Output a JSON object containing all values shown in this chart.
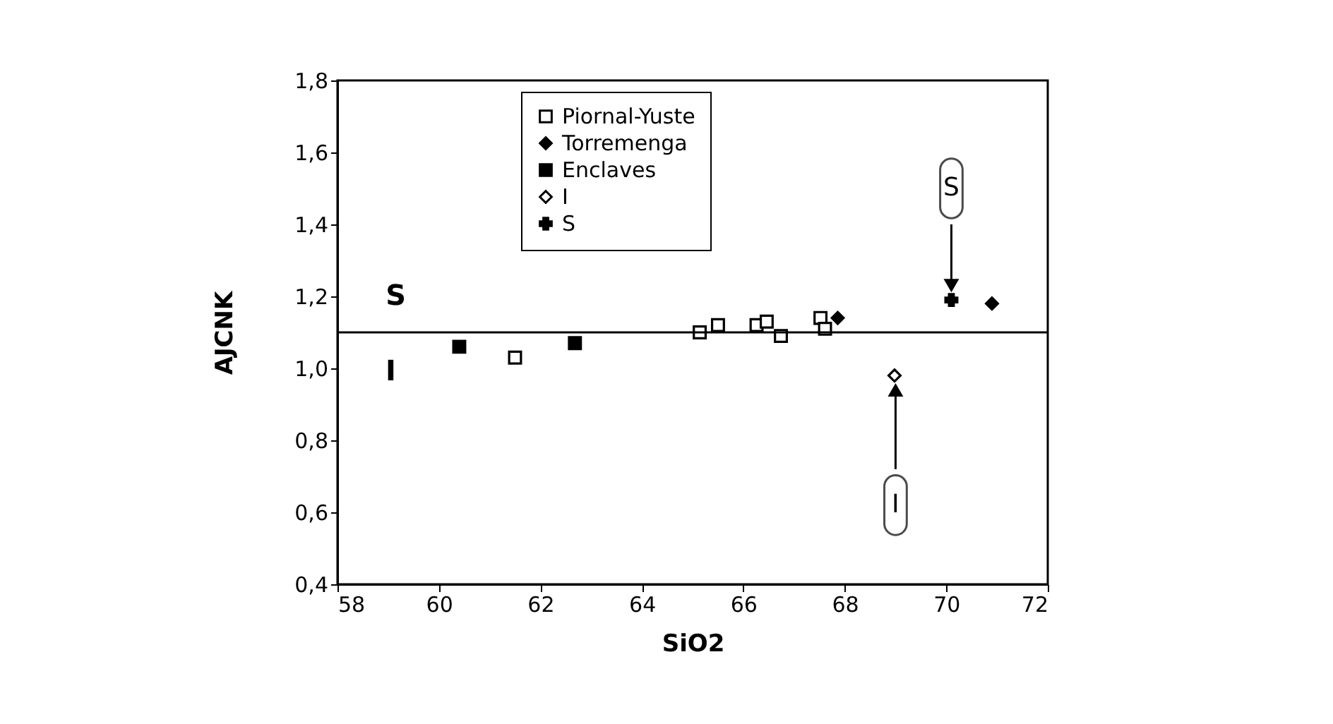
{
  "chart_data": {
    "type": "scatter",
    "xlabel": "SiO2",
    "ylabel": "AJCNK",
    "xlim": [
      58,
      72
    ],
    "xticks": [
      58,
      60,
      62,
      64,
      66,
      68,
      70,
      72
    ],
    "ylim": [
      0.4,
      1.8
    ],
    "yticks": [
      {
        "value": 0.4,
        "label": "0,4"
      },
      {
        "value": 0.6,
        "label": "0,6"
      },
      {
        "value": 0.8,
        "label": "0,8"
      },
      {
        "value": 1.0,
        "label": "1,0"
      },
      {
        "value": 1.2,
        "label": "1,2"
      },
      {
        "value": 1.4,
        "label": "1,4"
      },
      {
        "value": 1.6,
        "label": "1,6"
      },
      {
        "value": 1.8,
        "label": "1,8"
      }
    ],
    "legend": "top",
    "grid": false,
    "series": [
      {
        "name": "Piornal-Yuste",
        "color": "#000000",
        "marker": "square",
        "x": [
          61.5,
          65.14,
          65.5,
          66.26,
          66.46,
          66.74,
          67.52,
          67.61
        ],
        "values": [
          1.03,
          1.1,
          1.12,
          1.12,
          1.13,
          1.09,
          1.14,
          1.11
        ]
      },
      {
        "name": "Torremenga",
        "color": "#000000",
        "marker": "diamond",
        "x": [
          67.86,
          70.9
        ],
        "values": [
          1.14,
          1.18
        ]
      },
      {
        "name": "Enclaves",
        "color": "#000000",
        "marker": "square",
        "x": [
          60.4,
          62.68
        ],
        "values": [
          1.06,
          1.07
        ]
      },
      {
        "name": "I",
        "color": "#000000",
        "marker": "diamond",
        "x": [
          68.98
        ],
        "values": [
          0.98
        ]
      },
      {
        "name": "S",
        "color": "#000000",
        "marker": "cross",
        "x": [
          70.1
        ],
        "values": [
          1.19
        ]
      }
    ],
    "ref_lines": [
      {
        "axis": "y",
        "value": 1.1,
        "color": "#000000",
        "line_style": "solid"
      }
    ],
    "annotations": [
      "S",
      "I",
      {
        "text": "S",
        "x": 70.1,
        "y": 1.5
      },
      {
        "text": "I",
        "x": 69.0,
        "y": 0.62
      }
    ]
  }
}
